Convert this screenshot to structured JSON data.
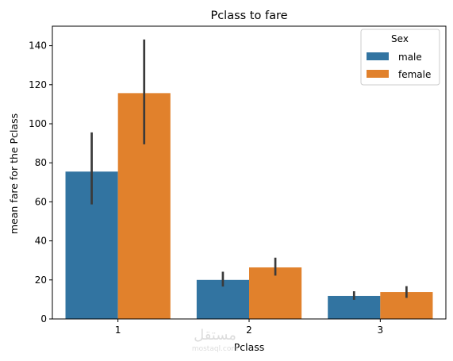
{
  "chart_data": {
    "type": "bar",
    "title": "Pclass to fare",
    "xlabel": "Pclass",
    "ylabel": "mean fare for the Pclass",
    "categories": [
      "1",
      "2",
      "3"
    ],
    "ylim": [
      0,
      150
    ],
    "yticks": [
      0,
      20,
      40,
      60,
      80,
      100,
      120,
      140
    ],
    "grid": false,
    "legend": {
      "title": "Sex",
      "placement": "top-right"
    },
    "series": [
      {
        "name": "male",
        "color": "#3274a1",
        "values": [
          75.5,
          20.0,
          11.8
        ],
        "ci_low": [
          58.7,
          16.6,
          9.8
        ],
        "ci_high": [
          95.6,
          24.2,
          14.2
        ]
      },
      {
        "name": "female",
        "color": "#e1812c",
        "values": [
          115.7,
          26.4,
          13.8
        ],
        "ci_low": [
          89.5,
          22.2,
          10.8
        ],
        "ci_high": [
          143.2,
          31.4,
          16.8
        ]
      }
    ],
    "errorbar_color": "#3a3a3a"
  },
  "watermark": {
    "text": "مستقل",
    "subtext": "mostaql.com"
  }
}
